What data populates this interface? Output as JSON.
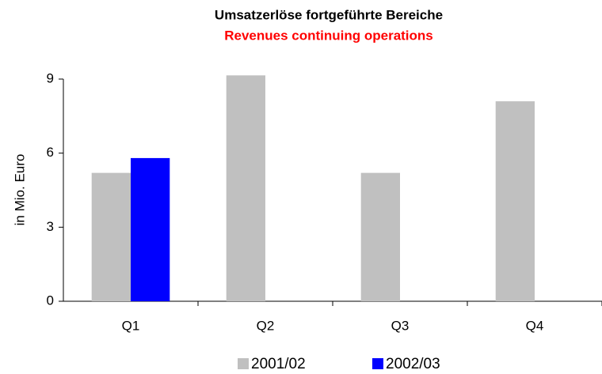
{
  "chart_data": {
    "type": "bar",
    "title": "Umsatzerlöse fortgeführte Bereiche",
    "subtitle": "Revenues continuing operations",
    "y_label": "in Mio. Euro",
    "categories": [
      "Q1",
      "Q2",
      "Q3",
      "Q4"
    ],
    "series": [
      {
        "name": "2001/02",
        "color": "#c0c0c0",
        "values": [
          5.2,
          9.15,
          5.2,
          8.1
        ]
      },
      {
        "name": "2002/03",
        "color": "#0000ff",
        "values": [
          5.8,
          null,
          null,
          null
        ]
      }
    ],
    "ylim": [
      0,
      9
    ],
    "yticks": [
      0,
      3,
      6,
      9
    ],
    "grid": false,
    "legend": "bottom"
  }
}
